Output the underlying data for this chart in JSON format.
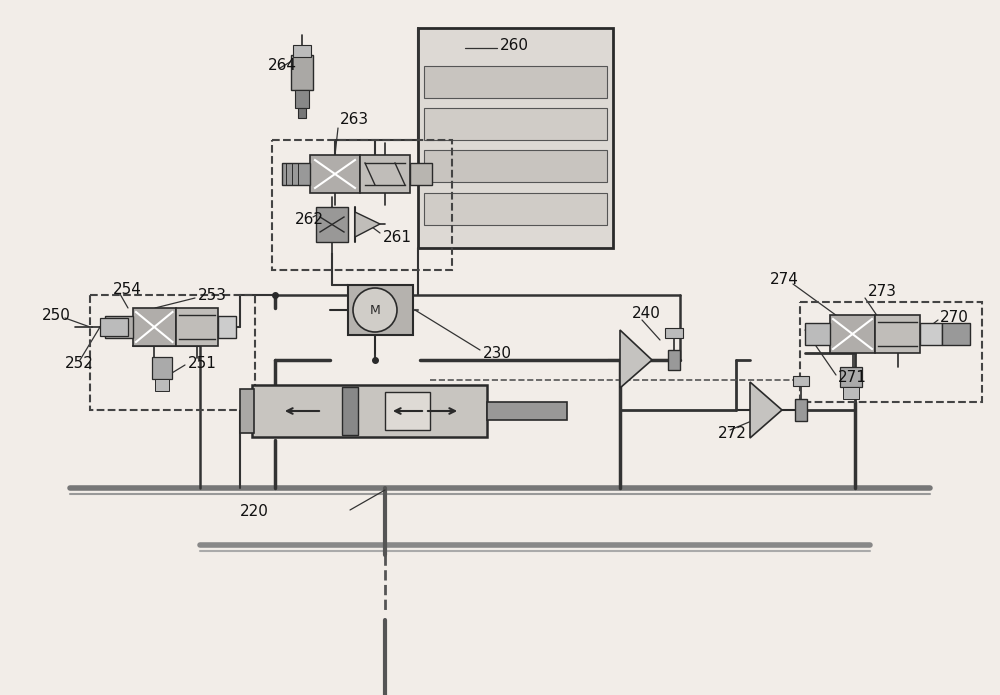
{
  "bg_color": "#f2ede8",
  "lc": "#2a2a2a",
  "gc": "#888888",
  "fig_width": 10.0,
  "fig_height": 6.95,
  "dpi": 100
}
